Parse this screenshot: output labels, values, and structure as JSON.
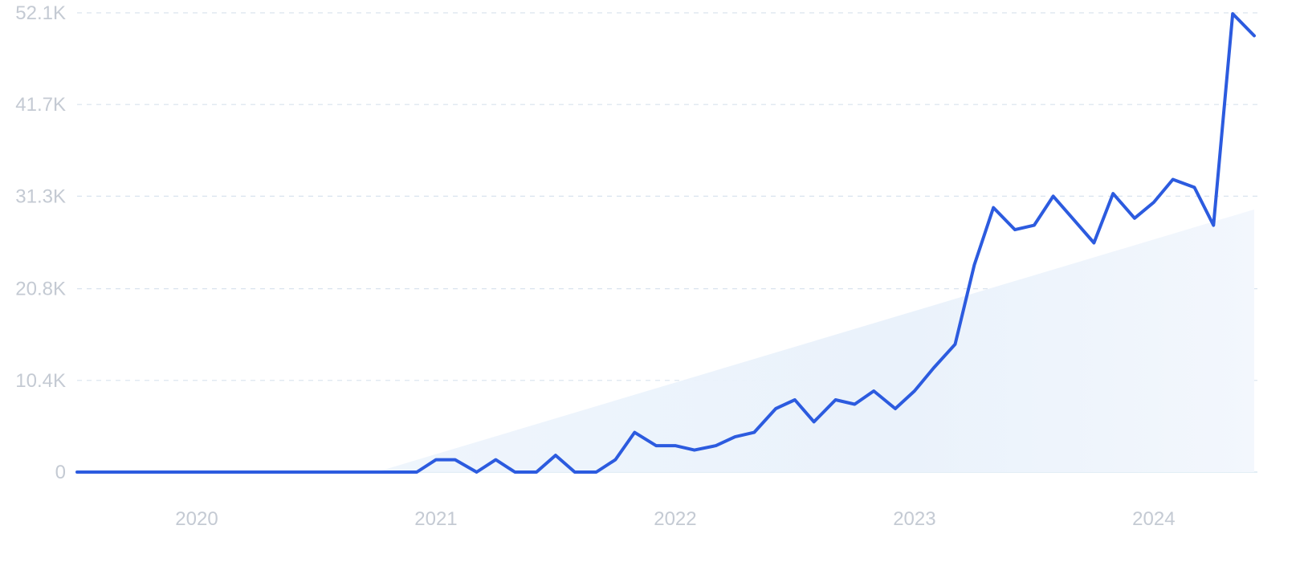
{
  "chart_data": {
    "type": "line",
    "title": "",
    "xlabel": "",
    "ylabel": "",
    "ylim": [
      0,
      52100
    ],
    "y_ticks": [
      0,
      10400,
      20800,
      31300,
      41700,
      52100
    ],
    "y_tick_labels": [
      "0",
      "10.4K",
      "20.8K",
      "31.3K",
      "41.7K",
      "52.1K"
    ],
    "x_ticks": [
      2020,
      2021,
      2022,
      2023,
      2024
    ],
    "x_tick_labels": [
      "2020",
      "2021",
      "2022",
      "2023",
      "2024"
    ],
    "xlim": [
      2019.5,
      2024.42
    ],
    "grid": true,
    "legend": "none",
    "series": [
      {
        "x": [
          2019.5,
          2020.75,
          2020.92,
          2021.0,
          2021.08,
          2021.17,
          2021.25,
          2021.33,
          2021.42,
          2021.5,
          2021.58,
          2021.67,
          2021.75,
          2021.83,
          2021.92,
          2022.0,
          2022.08,
          2022.17,
          2022.25,
          2022.33,
          2022.42,
          2022.5,
          2022.58,
          2022.67,
          2022.75,
          2022.83,
          2022.92,
          2023.0,
          2023.08,
          2023.17,
          2023.25,
          2023.33,
          2023.42,
          2023.5,
          2023.58,
          2023.67,
          2023.75,
          2023.83,
          2023.92,
          2024.0,
          2024.08,
          2024.17,
          2024.25,
          2024.33,
          2024.42
        ],
        "values": [
          0,
          0,
          0,
          1400,
          1400,
          0,
          1400,
          0,
          0,
          1900,
          0,
          0,
          1400,
          4500,
          3000,
          3000,
          2500,
          3000,
          4000,
          4500,
          7200,
          8200,
          5700,
          8200,
          7700,
          9200,
          7200,
          9200,
          11800,
          14500,
          23500,
          30000,
          27500,
          28000,
          31300,
          28500,
          26000,
          31600,
          28800,
          30600,
          33200,
          32300,
          28000,
          52000,
          49500
        ]
      }
    ],
    "trend": {
      "x": [
        2020.75,
        2024.42
      ],
      "values": [
        0,
        29800
      ]
    },
    "colors": {
      "line": "#2c5bdf",
      "trend_fill": "#e8f1fb",
      "grid": "#d9e3ee",
      "tick_text": "#c4cad3"
    }
  }
}
